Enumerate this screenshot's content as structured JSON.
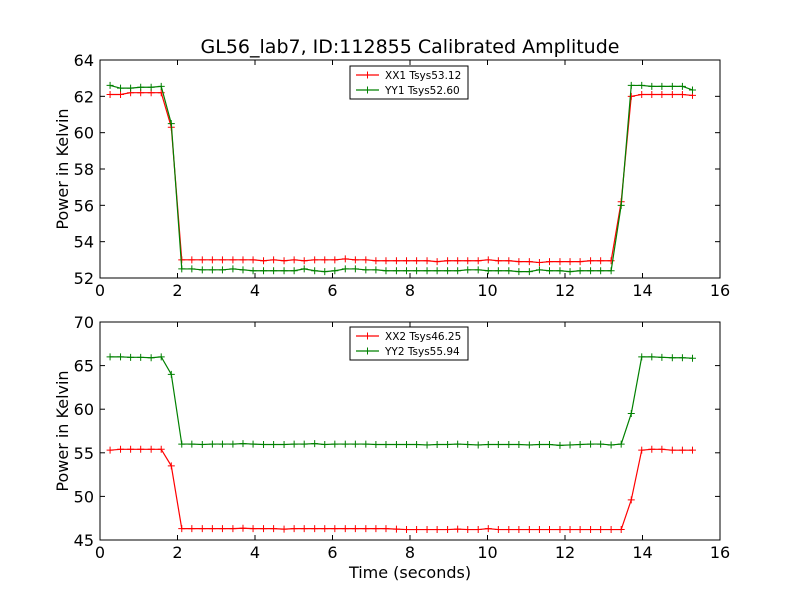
{
  "chart_data": [
    {
      "type": "line",
      "title": "GL56_lab7, ID:112855 Calibrated Amplitude",
      "xlabel": "",
      "ylabel": "Power in Kelvin",
      "xlim": [
        0,
        16
      ],
      "ylim": [
        52,
        64
      ],
      "xticks": [
        "0",
        "2",
        "4",
        "6",
        "8",
        "10",
        "12",
        "14",
        "16"
      ],
      "yticks": [
        "52",
        "54",
        "56",
        "58",
        "60",
        "62",
        "64"
      ],
      "legend_position": "top-center",
      "grid": false,
      "x": [
        0.26,
        0.53,
        0.79,
        1.05,
        1.32,
        1.58,
        1.84,
        2.11,
        2.37,
        2.64,
        2.9,
        3.16,
        3.43,
        3.69,
        3.95,
        4.22,
        4.48,
        4.75,
        5.01,
        5.27,
        5.54,
        5.8,
        6.06,
        6.33,
        6.59,
        6.86,
        7.12,
        7.38,
        7.65,
        7.91,
        8.17,
        8.44,
        8.7,
        8.97,
        9.23,
        9.49,
        9.76,
        10.02,
        10.28,
        10.55,
        10.81,
        11.08,
        11.34,
        11.6,
        11.87,
        12.13,
        12.39,
        12.66,
        12.92,
        13.19,
        13.45,
        13.71,
        13.98,
        14.24,
        14.5,
        14.77,
        15.03,
        15.29
      ],
      "series": [
        {
          "name": "XX1 Tsys53.12",
          "color": "#ff0000",
          "values": [
            62.1,
            62.1,
            62.2,
            62.2,
            62.2,
            62.2,
            60.3,
            53.0,
            53.0,
            53.0,
            53.0,
            53.0,
            53.0,
            53.0,
            53.0,
            52.95,
            53.0,
            52.95,
            53.0,
            52.95,
            53.0,
            53.0,
            53.0,
            53.05,
            53.0,
            53.0,
            52.95,
            52.95,
            52.95,
            52.95,
            52.95,
            52.95,
            52.9,
            52.95,
            52.95,
            52.95,
            52.95,
            53.0,
            52.95,
            52.95,
            52.9,
            52.9,
            52.85,
            52.9,
            52.9,
            52.9,
            52.9,
            52.95,
            52.95,
            52.95,
            56.2,
            62.0,
            62.1,
            62.1,
            62.1,
            62.1,
            62.1,
            62.05
          ]
        },
        {
          "name": "YY1 Tsys52.60",
          "color": "#008000",
          "values": [
            62.6,
            62.45,
            62.45,
            62.5,
            62.5,
            62.55,
            60.5,
            52.5,
            52.5,
            52.45,
            52.45,
            52.45,
            52.5,
            52.45,
            52.4,
            52.4,
            52.4,
            52.4,
            52.4,
            52.5,
            52.4,
            52.35,
            52.4,
            52.5,
            52.5,
            52.45,
            52.45,
            52.4,
            52.4,
            52.4,
            52.4,
            52.4,
            52.4,
            52.4,
            52.4,
            52.45,
            52.45,
            52.4,
            52.4,
            52.4,
            52.35,
            52.35,
            52.45,
            52.4,
            52.4,
            52.35,
            52.4,
            52.4,
            52.4,
            52.4,
            56.0,
            62.6,
            62.6,
            62.55,
            62.55,
            62.55,
            62.55,
            62.35
          ]
        }
      ]
    },
    {
      "type": "line",
      "title": "",
      "xlabel": "Time (seconds)",
      "ylabel": "Power in Kelvin",
      "xlim": [
        0,
        16
      ],
      "ylim": [
        45,
        70
      ],
      "xticks": [
        "0",
        "2",
        "4",
        "6",
        "8",
        "10",
        "12",
        "14",
        "16"
      ],
      "yticks": [
        "45",
        "50",
        "55",
        "60",
        "65",
        "70"
      ],
      "legend_position": "top-center",
      "grid": false,
      "x": [
        0.26,
        0.53,
        0.79,
        1.05,
        1.32,
        1.58,
        1.84,
        2.11,
        2.37,
        2.64,
        2.9,
        3.16,
        3.43,
        3.69,
        3.95,
        4.22,
        4.48,
        4.75,
        5.01,
        5.27,
        5.54,
        5.8,
        6.06,
        6.33,
        6.59,
        6.86,
        7.12,
        7.38,
        7.65,
        7.91,
        8.17,
        8.44,
        8.7,
        8.97,
        9.23,
        9.49,
        9.76,
        10.02,
        10.28,
        10.55,
        10.81,
        11.08,
        11.34,
        11.6,
        11.87,
        12.13,
        12.39,
        12.66,
        12.92,
        13.19,
        13.45,
        13.71,
        13.98,
        14.24,
        14.5,
        14.77,
        15.03,
        15.29
      ],
      "series": [
        {
          "name": "XX2 Tsys46.25",
          "color": "#ff0000",
          "values": [
            55.3,
            55.4,
            55.4,
            55.4,
            55.4,
            55.4,
            53.5,
            46.3,
            46.3,
            46.3,
            46.3,
            46.3,
            46.3,
            46.35,
            46.3,
            46.3,
            46.3,
            46.25,
            46.3,
            46.3,
            46.3,
            46.3,
            46.3,
            46.3,
            46.3,
            46.3,
            46.3,
            46.3,
            46.25,
            46.2,
            46.2,
            46.2,
            46.2,
            46.2,
            46.25,
            46.2,
            46.2,
            46.3,
            46.2,
            46.2,
            46.2,
            46.2,
            46.2,
            46.2,
            46.2,
            46.2,
            46.2,
            46.2,
            46.2,
            46.2,
            46.2,
            49.6,
            55.3,
            55.4,
            55.4,
            55.3,
            55.3,
            55.3
          ]
        },
        {
          "name": "YY2 Tsys55.94",
          "color": "#008000",
          "values": [
            66.0,
            66.0,
            65.95,
            65.95,
            65.9,
            66.0,
            64.0,
            56.0,
            56.0,
            55.95,
            56.0,
            56.0,
            56.0,
            56.05,
            56.0,
            55.95,
            55.95,
            55.95,
            56.0,
            56.0,
            56.05,
            55.95,
            56.0,
            56.0,
            56.0,
            56.0,
            55.95,
            55.95,
            55.95,
            55.95,
            55.95,
            55.9,
            55.95,
            55.95,
            56.0,
            55.95,
            55.9,
            55.95,
            55.95,
            55.95,
            55.95,
            55.9,
            55.95,
            55.95,
            55.85,
            55.9,
            55.95,
            56.0,
            56.0,
            55.9,
            56.0,
            59.5,
            66.0,
            66.0,
            65.95,
            65.9,
            65.9,
            65.85
          ]
        }
      ]
    }
  ]
}
